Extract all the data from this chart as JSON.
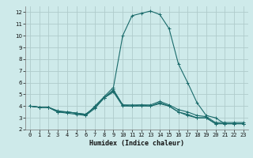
{
  "xlabel": "Humidex (Indice chaleur)",
  "x": [
    0,
    1,
    2,
    3,
    4,
    5,
    6,
    7,
    8,
    9,
    10,
    11,
    12,
    13,
    14,
    15,
    16,
    17,
    18,
    19,
    20,
    21,
    22,
    23
  ],
  "series": [
    [
      4.0,
      3.9,
      3.9,
      3.5,
      3.5,
      3.4,
      3.3,
      3.9,
      4.7,
      5.4,
      4.1,
      4.1,
      4.1,
      4.1,
      4.4,
      4.1,
      3.7,
      3.5,
      3.2,
      3.1,
      2.6,
      2.6,
      2.6,
      2.6
    ],
    [
      4.0,
      3.9,
      3.9,
      3.6,
      3.5,
      3.4,
      3.3,
      3.9,
      4.7,
      5.3,
      4.1,
      4.0,
      4.1,
      4.0,
      4.2,
      4.0,
      3.5,
      3.3,
      3.0,
      3.0,
      2.5,
      2.5,
      2.5,
      2.5
    ],
    [
      4.0,
      3.9,
      3.9,
      3.5,
      3.4,
      3.3,
      3.2,
      4.0,
      4.8,
      5.6,
      10.0,
      11.7,
      11.9,
      12.1,
      11.8,
      10.6,
      7.6,
      6.0,
      4.3,
      3.2,
      3.0,
      2.5,
      2.5,
      2.5
    ],
    [
      4.0,
      3.9,
      3.9,
      3.5,
      3.5,
      3.4,
      3.2,
      3.8,
      4.7,
      5.2,
      4.0,
      4.0,
      4.0,
      4.0,
      4.3,
      4.0,
      3.5,
      3.2,
      3.0,
      3.0,
      2.5,
      2.5,
      2.5,
      2.5
    ]
  ],
  "line_color": "#1a6b6b",
  "bg_color": "#ceeaea",
  "grid_color": "#b0cccc",
  "ylim": [
    2,
    12.5
  ],
  "xlim": [
    -0.5,
    23.5
  ],
  "yticks": [
    2,
    3,
    4,
    5,
    6,
    7,
    8,
    9,
    10,
    11,
    12
  ],
  "xticks": [
    0,
    1,
    2,
    3,
    4,
    5,
    6,
    7,
    8,
    9,
    10,
    11,
    12,
    13,
    14,
    15,
    16,
    17,
    18,
    19,
    20,
    21,
    22,
    23
  ],
  "xlabel_fontsize": 6,
  "tick_fontsize": 5,
  "linewidth": 0.8,
  "markersize": 2.5
}
